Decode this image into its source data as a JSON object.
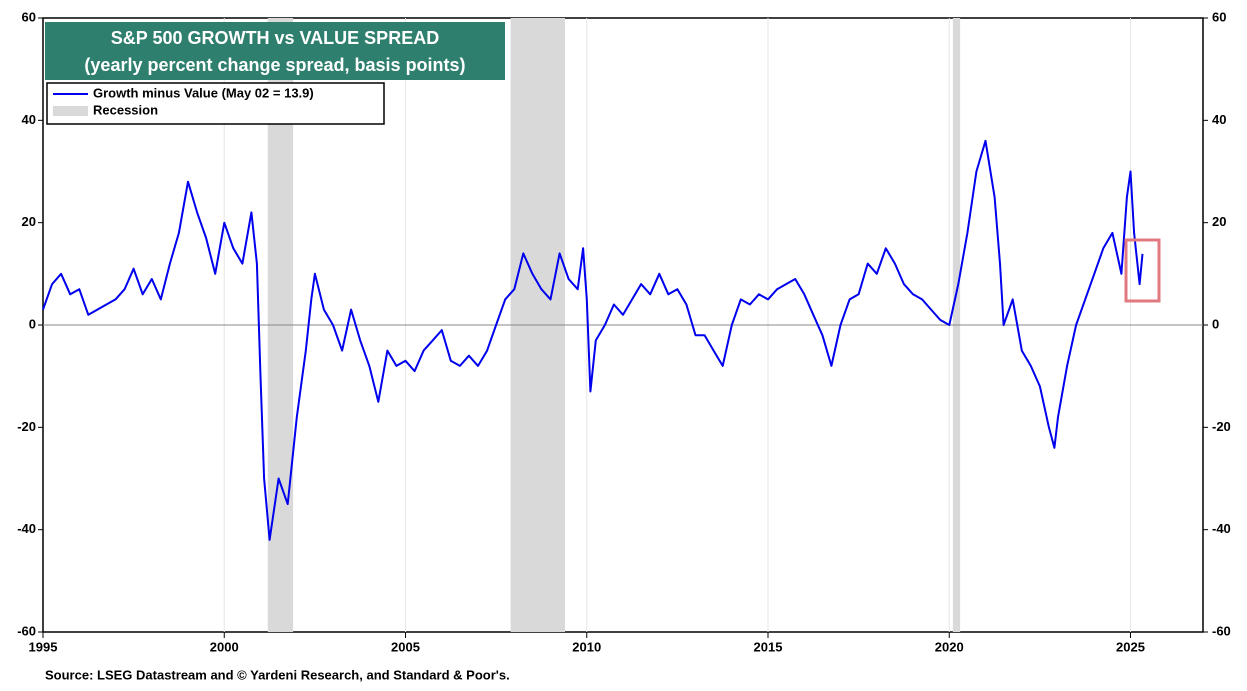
{
  "chart_data": {
    "type": "line",
    "title": "S&P 500 GROWTH vs VALUE SPREAD",
    "subtitle": "(yearly percent change spread, basis points)",
    "source": "Source: LSEG Datastream and © Yardeni Research, and Standard & Poor's.",
    "recession_label": "Recession",
    "recessions": [
      [
        2001.2,
        2001.9
      ],
      [
        2007.9,
        2009.4
      ],
      [
        2020.1,
        2020.3
      ]
    ],
    "recession_color": "#d9d9d9",
    "xlim": [
      1995,
      2027
    ],
    "xticks": [
      1995,
      2000,
      2005,
      2010,
      2015,
      2020,
      2025
    ],
    "ylim": [
      -60,
      60
    ],
    "yticks": [
      -60,
      -40,
      -20,
      0,
      20,
      40,
      60
    ],
    "y2lim": [
      -60,
      60
    ],
    "y2ticks": [
      -60,
      -40,
      -20,
      0,
      20,
      40,
      60
    ],
    "grid": true,
    "x": [
      1995.0,
      1995.25,
      1995.5,
      1995.75,
      1996.0,
      1996.25,
      1996.5,
      1996.75,
      1997.0,
      1997.25,
      1997.5,
      1997.75,
      1998.0,
      1998.25,
      1998.5,
      1998.75,
      1999.0,
      1999.25,
      1999.5,
      1999.75,
      2000.0,
      2000.25,
      2000.5,
      2000.75,
      2000.9,
      2001.0,
      2001.1,
      2001.25,
      2001.5,
      2001.75,
      2002.0,
      2002.25,
      2002.4,
      2002.5,
      2002.75,
      2003.0,
      2003.25,
      2003.5,
      2003.75,
      2004.0,
      2004.25,
      2004.5,
      2004.75,
      2005.0,
      2005.25,
      2005.5,
      2005.75,
      2006.0,
      2006.25,
      2006.5,
      2006.75,
      2007.0,
      2007.25,
      2007.5,
      2007.75,
      2008.0,
      2008.25,
      2008.5,
      2008.75,
      2009.0,
      2009.25,
      2009.5,
      2009.75,
      2009.9,
      2010.0,
      2010.1,
      2010.25,
      2010.5,
      2010.75,
      2011.0,
      2011.25,
      2011.5,
      2011.75,
      2012.0,
      2012.25,
      2012.5,
      2012.75,
      2013.0,
      2013.25,
      2013.5,
      2013.75,
      2014.0,
      2014.25,
      2014.5,
      2014.75,
      2015.0,
      2015.25,
      2015.5,
      2015.75,
      2016.0,
      2016.25,
      2016.5,
      2016.75,
      2017.0,
      2017.25,
      2017.5,
      2017.75,
      2018.0,
      2018.25,
      2018.5,
      2018.75,
      2019.0,
      2019.25,
      2019.5,
      2019.75,
      2020.0,
      2020.25,
      2020.5,
      2020.75,
      2021.0,
      2021.25,
      2021.4,
      2021.5,
      2021.75,
      2022.0,
      2022.25,
      2022.5,
      2022.75,
      2022.9,
      2023.0,
      2023.25,
      2023.5,
      2023.75,
      2024.0,
      2024.25,
      2024.5,
      2024.75,
      2024.9,
      2025.0,
      2025.1,
      2025.25,
      2025.33
    ],
    "series": [
      {
        "name": "Growth minus Value (May 02 = 13.9)",
        "color": "#0000ee",
        "values": [
          3,
          8,
          10,
          6,
          7,
          2,
          3,
          4,
          5,
          7,
          11,
          6,
          9,
          5,
          12,
          18,
          28,
          22,
          17,
          10,
          20,
          15,
          12,
          22,
          12,
          -10,
          -30,
          -42,
          -30,
          -35,
          -18,
          -5,
          5,
          10,
          3,
          0,
          -5,
          3,
          -3,
          -8,
          -15,
          -5,
          -8,
          -7,
          -9,
          -5,
          -3,
          -1,
          -7,
          -8,
          -6,
          -8,
          -5,
          0,
          5,
          7,
          14,
          10,
          7,
          5,
          14,
          9,
          7,
          15,
          5,
          -13,
          -3,
          0,
          4,
          2,
          5,
          8,
          6,
          10,
          6,
          7,
          4,
          -2,
          -2,
          -5,
          -8,
          0,
          5,
          4,
          6,
          5,
          7,
          8,
          9,
          6,
          2,
          -2,
          -8,
          0,
          5,
          6,
          12,
          10,
          15,
          12,
          8,
          6,
          5,
          3,
          1,
          0,
          8,
          18,
          30,
          36,
          25,
          12,
          0,
          5,
          -5,
          -8,
          -12,
          -20,
          -24,
          -18,
          -8,
          0,
          5,
          10,
          15,
          18,
          10,
          25,
          30,
          18,
          8,
          13.9
        ]
      }
    ]
  }
}
